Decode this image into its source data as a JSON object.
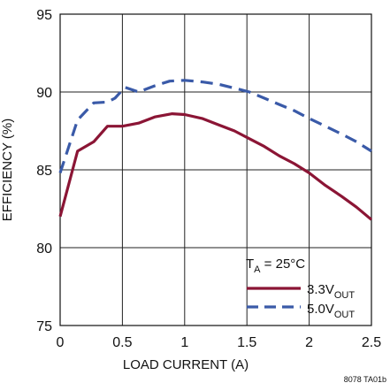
{
  "chart_data": {
    "type": "line",
    "xlabel": "LOAD CURRENT (A)",
    "ylabel": "EFFICIENCY (%)",
    "xlim": [
      0,
      2.5
    ],
    "ylim": [
      75,
      95
    ],
    "x_ticks": [
      "0",
      "0.5",
      "1",
      "1.5",
      "2",
      "2.5"
    ],
    "y_ticks": [
      "75",
      "80",
      "85",
      "90",
      "95"
    ],
    "grid": true,
    "legend_placement": "bottom-right",
    "legend_title": {
      "main": "T",
      "sub": "A",
      "rest": " = 25°C"
    },
    "series": [
      {
        "name": "3.3V",
        "name_sub": "OUT",
        "color": "#8b1535",
        "style": "solid",
        "x": [
          0,
          0.14,
          0.27,
          0.38,
          0.5,
          0.63,
          0.76,
          0.9,
          1.0,
          1.14,
          1.27,
          1.4,
          1.52,
          1.64,
          1.76,
          1.88,
          2.0,
          2.13,
          2.26,
          2.38,
          2.5
        ],
        "y": [
          82.0,
          86.2,
          86.8,
          87.8,
          87.8,
          88.0,
          88.4,
          88.6,
          88.55,
          88.3,
          87.9,
          87.5,
          87.0,
          86.5,
          85.9,
          85.4,
          84.8,
          84.0,
          83.3,
          82.6,
          81.8
        ]
      },
      {
        "name": "5.0V",
        "name_sub": "OUT",
        "color": "#3a5aa8",
        "style": "dashed",
        "x": [
          0,
          0.14,
          0.27,
          0.38,
          0.44,
          0.52,
          0.63,
          0.76,
          0.88,
          1.0,
          1.14,
          1.27,
          1.4,
          1.52,
          1.64,
          1.76,
          1.88,
          2.0,
          2.13,
          2.26,
          2.38,
          2.5
        ],
        "y": [
          84.8,
          88.2,
          89.3,
          89.35,
          89.6,
          90.3,
          90.0,
          90.4,
          90.7,
          90.75,
          90.65,
          90.5,
          90.25,
          90.0,
          89.6,
          89.2,
          88.8,
          88.3,
          87.8,
          87.3,
          86.8,
          86.2
        ]
      }
    ]
  },
  "footnote": "8078 TA01b"
}
